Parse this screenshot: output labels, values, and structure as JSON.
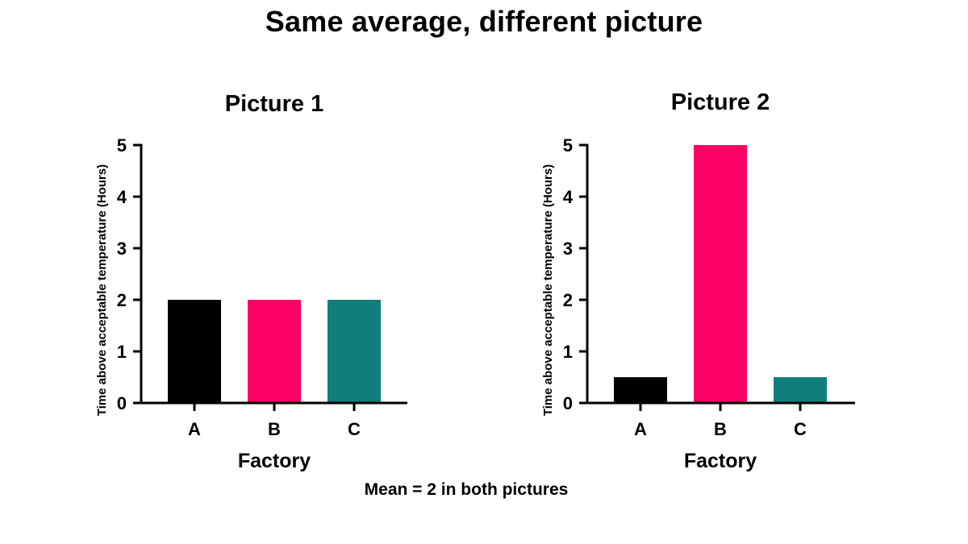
{
  "page": {
    "title": "Same average, different picture",
    "footnote": "Mean = 2 in both pictures"
  },
  "chart_data": [
    {
      "type": "bar",
      "title": "Picture 1",
      "xlabel": "Factory",
      "ylabel": "Time above acceptable temperature (Hours)",
      "categories": [
        "A",
        "B",
        "C"
      ],
      "values": [
        2,
        2,
        2
      ],
      "colors": [
        "#000000",
        "#ff0066",
        "#127e7c"
      ],
      "ylim": [
        0,
        5
      ],
      "yticks": [
        0,
        1,
        2,
        3,
        4,
        5
      ],
      "grid": false
    },
    {
      "type": "bar",
      "title": "Picture 2",
      "xlabel": "Factory",
      "ylabel": "Time above acceptable temperature (Hours)",
      "categories": [
        "A",
        "B",
        "C"
      ],
      "values": [
        0.5,
        5,
        0.5
      ],
      "colors": [
        "#000000",
        "#ff0066",
        "#127e7c"
      ],
      "ylim": [
        0,
        5
      ],
      "yticks": [
        0,
        1,
        2,
        3,
        4,
        5
      ],
      "grid": false
    }
  ]
}
